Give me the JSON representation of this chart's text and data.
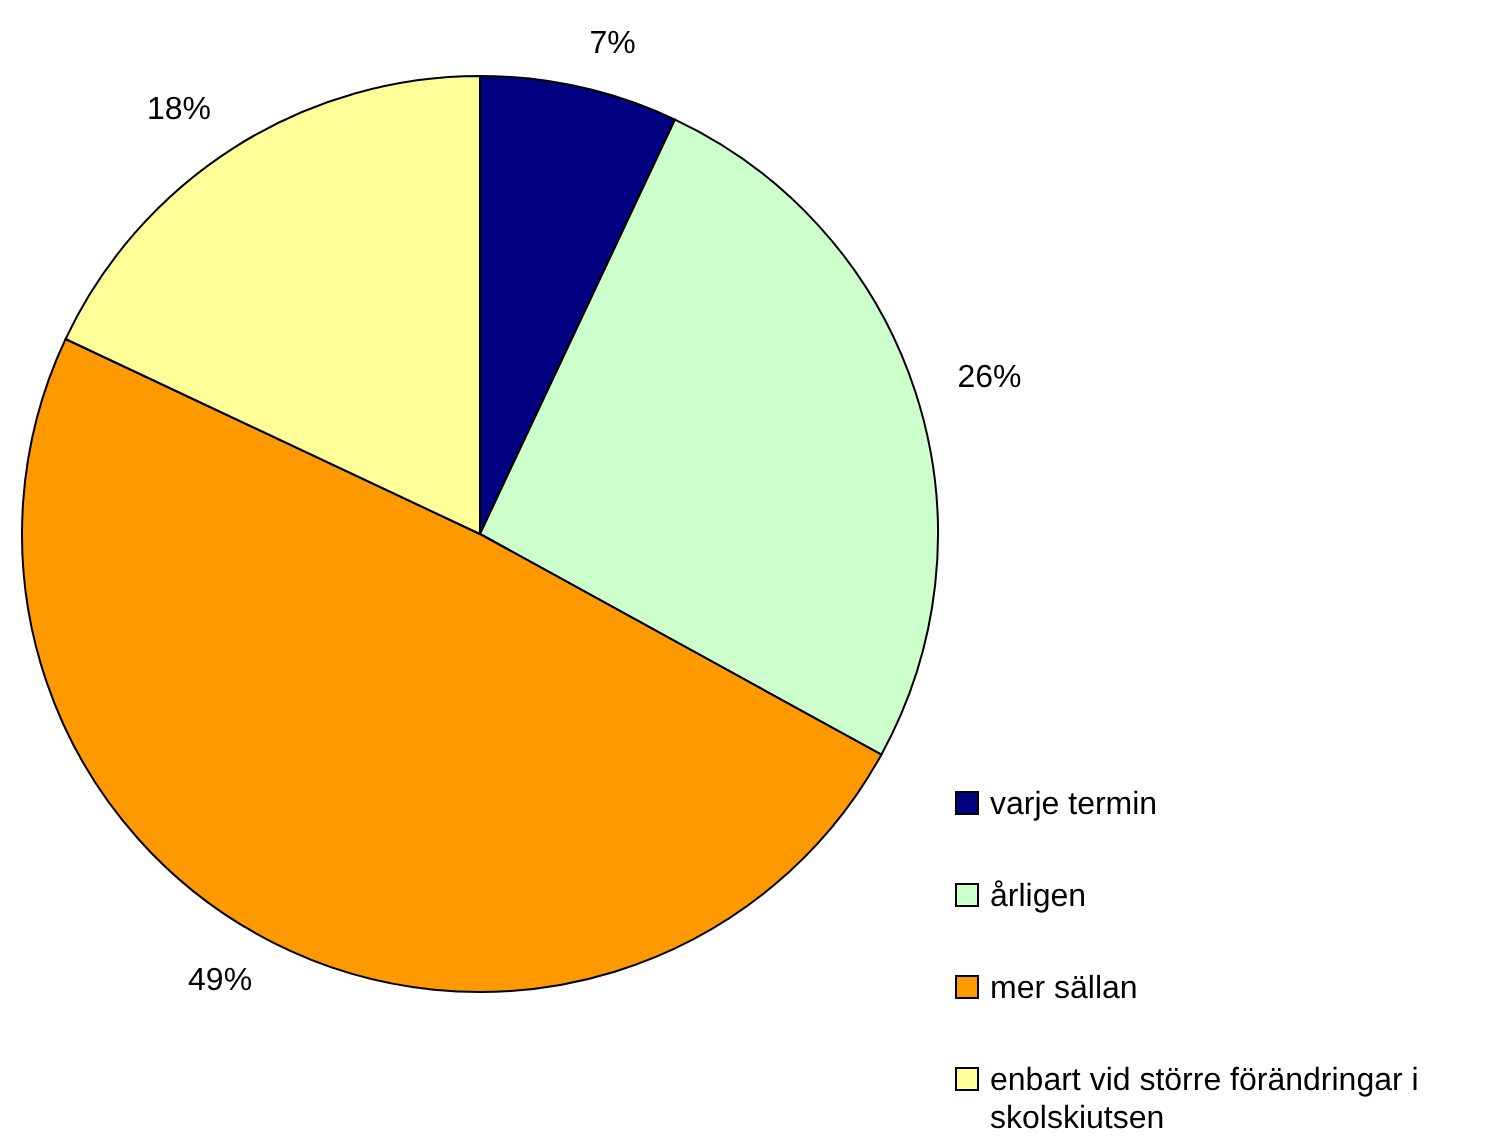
{
  "chart_data": {
    "type": "pie",
    "categories": [
      "varje termin",
      "årligen",
      "mer sällan",
      "enbart vid större förändringar i skolskiutsen"
    ],
    "values": [
      7,
      26,
      49,
      18
    ],
    "colors": [
      "#000080",
      "#ccffcc",
      "#ff9900",
      "#ffff99"
    ],
    "value_labels": [
      "7%",
      "26%",
      "49%",
      "18%"
    ],
    "legend": "bottom right"
  }
}
